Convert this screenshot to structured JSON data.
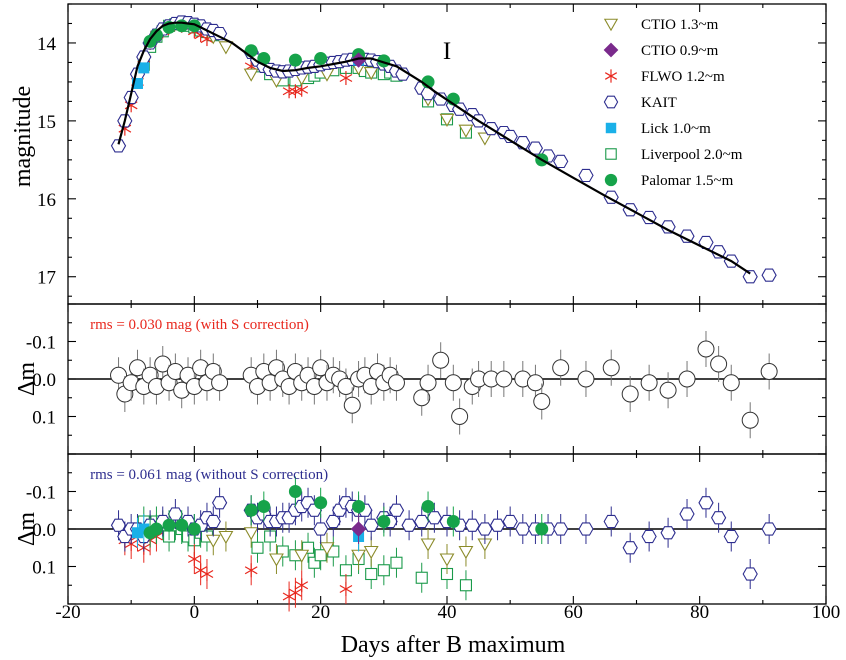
{
  "colors": {
    "kait": "#2e2e8f",
    "ctio13": "#8b8b2a",
    "ctio09": "#7a2a8c",
    "flwo": "#e8281e",
    "lick": "#1ab0e8",
    "liverpool": "#1a9a4a",
    "palomar": "#16a34a",
    "rms_with": "#e8281e",
    "rms_without": "#2e2e8f",
    "residual_with": "#555555"
  },
  "chart_data": [
    {
      "type": "scatter",
      "panel": "light-curve",
      "band_label": "I",
      "ylabel": "magnitude",
      "xlabel": "Days after B maximum",
      "xlim": [
        -20,
        100
      ],
      "ylim_inverted": [
        13.5,
        17.35
      ],
      "yticks": [
        "14",
        "15",
        "16",
        "17"
      ],
      "xticks": [
        "-20",
        "0",
        "20",
        "40",
        "60",
        "80",
        "100"
      ],
      "legend_position": "top-right",
      "legend": [
        {
          "key": "ctio13",
          "label": "CTIO 1.3~m",
          "marker": "triangle-down-open"
        },
        {
          "key": "ctio09",
          "label": "CTIO 0.9~m",
          "marker": "diamond-filled"
        },
        {
          "key": "flwo",
          "label": "FLWO 1.2~m",
          "marker": "asterisk"
        },
        {
          "key": "kait",
          "label": "KAIT",
          "marker": "hexagon-open"
        },
        {
          "key": "lick",
          "label": "Lick 1.0~m",
          "marker": "square-filled"
        },
        {
          "key": "liverpool",
          "label": "Liverpool 2.0~m",
          "marker": "square-open"
        },
        {
          "key": "palomar",
          "label": "Palomar 1.5~m",
          "marker": "circle-filled"
        }
      ],
      "model_curve": {
        "x": [
          -12,
          -11,
          -10,
          -9,
          -8,
          -7,
          -6,
          -5,
          -4,
          -3,
          -2,
          -1,
          0,
          1,
          2,
          4,
          6,
          8,
          10,
          12,
          14,
          16,
          18,
          20,
          22,
          24,
          26,
          28,
          30,
          32,
          34,
          36,
          38,
          40,
          45,
          50,
          55,
          60,
          65,
          70,
          75,
          80,
          85,
          88
        ],
        "y": [
          15.3,
          15.0,
          14.65,
          14.3,
          14.1,
          13.95,
          13.85,
          13.78,
          13.75,
          13.74,
          13.74,
          13.75,
          13.76,
          13.8,
          13.84,
          13.92,
          14.0,
          14.12,
          14.24,
          14.32,
          14.36,
          14.35,
          14.32,
          14.3,
          14.27,
          14.24,
          14.2,
          14.2,
          14.25,
          14.3,
          14.4,
          14.5,
          14.62,
          14.73,
          15.0,
          15.25,
          15.5,
          15.73,
          15.96,
          16.18,
          16.4,
          16.6,
          16.8,
          16.96
        ]
      },
      "series": [
        {
          "key": "kait",
          "x": [
            -12,
            -11,
            -10,
            -9,
            -8,
            -7,
            -6,
            -5,
            -4,
            -3,
            -2,
            -1,
            0,
            1,
            2,
            3,
            4,
            9,
            10,
            11,
            12,
            13,
            14,
            15,
            16,
            17,
            18,
            19,
            20,
            21,
            22,
            23,
            24,
            25,
            26,
            27,
            28,
            29,
            30,
            31,
            32,
            33,
            36,
            37,
            39,
            41,
            42,
            44,
            45,
            47,
            49,
            50,
            52,
            54,
            56,
            58,
            62,
            66,
            69,
            72,
            75,
            78,
            81,
            83,
            85,
            88,
            91
          ],
          "y": [
            15.32,
            15.0,
            14.7,
            14.4,
            14.18,
            14.0,
            13.9,
            13.82,
            13.78,
            13.75,
            13.73,
            13.74,
            13.76,
            13.78,
            13.82,
            13.84,
            13.88,
            14.12,
            14.22,
            14.3,
            14.34,
            14.36,
            14.37,
            14.36,
            14.34,
            14.32,
            14.31,
            14.3,
            14.28,
            14.26,
            14.25,
            14.24,
            14.22,
            14.21,
            14.2,
            14.21,
            14.22,
            14.24,
            14.27,
            14.3,
            14.36,
            14.4,
            14.58,
            14.65,
            14.72,
            14.8,
            14.85,
            14.92,
            15.0,
            15.1,
            15.15,
            15.2,
            15.28,
            15.35,
            15.45,
            15.52,
            15.7,
            15.98,
            16.14,
            16.24,
            16.36,
            16.48,
            16.56,
            16.68,
            16.8,
            17.0,
            16.98
          ]
        },
        {
          "key": "ctio13",
          "x": [
            3,
            5,
            9,
            13,
            17,
            21,
            26,
            28,
            37,
            40,
            43,
            46
          ],
          "y": [
            13.92,
            14.05,
            14.4,
            14.48,
            14.45,
            14.4,
            14.32,
            14.38,
            14.72,
            14.98,
            15.12,
            15.22
          ]
        },
        {
          "key": "ctio09",
          "x": [
            26
          ],
          "y": [
            14.22
          ]
        },
        {
          "key": "flwo",
          "x": [
            -11,
            -10,
            -9,
            -8,
            -7,
            -6,
            -5,
            -4,
            -2,
            0,
            1,
            2,
            9,
            15,
            16,
            17,
            24
          ],
          "y": [
            15.1,
            14.8,
            14.5,
            14.2,
            14.0,
            13.9,
            13.85,
            13.8,
            13.78,
            13.85,
            13.9,
            13.95,
            14.3,
            14.62,
            14.62,
            14.6,
            14.45
          ]
        },
        {
          "key": "lick",
          "x": [
            -9,
            -8,
            26
          ],
          "y": [
            14.52,
            14.32,
            14.22
          ]
        },
        {
          "key": "liverpool",
          "x": [
            -8,
            -7,
            -6,
            -5,
            -4,
            -3,
            -2,
            -1,
            0,
            1,
            2,
            3,
            10,
            12,
            14,
            16,
            18,
            19,
            20,
            22,
            24,
            26,
            27,
            28,
            30,
            31,
            32,
            37,
            40,
            43
          ],
          "y": [
            14.28,
            14.05,
            13.92,
            13.85,
            13.78,
            13.76,
            13.76,
            13.78,
            13.8,
            13.84,
            13.86,
            13.9,
            14.3,
            14.4,
            14.48,
            14.48,
            14.45,
            14.42,
            14.38,
            14.35,
            14.32,
            14.32,
            14.36,
            14.38,
            14.4,
            14.38,
            14.42,
            14.75,
            14.98,
            15.15
          ]
        },
        {
          "key": "palomar",
          "x": [
            -7,
            -6,
            -4,
            -2,
            0,
            9,
            11,
            16,
            20,
            26,
            30,
            37,
            41,
            55
          ],
          "y": [
            13.98,
            13.9,
            13.8,
            13.78,
            13.78,
            14.1,
            14.2,
            14.22,
            14.2,
            14.15,
            14.23,
            14.5,
            14.72,
            15.5
          ]
        }
      ]
    },
    {
      "type": "scatter",
      "panel": "residuals-with-S",
      "annotation": "rms = 0.030 mag (with S correction)",
      "ylabel": "Δm",
      "ylim_inverted": [
        -0.2,
        0.2
      ],
      "yticks": [
        "-0.1",
        "0.0",
        "0.1"
      ],
      "series": [
        {
          "key": "residual_with",
          "x": [
            -12,
            -11,
            -10,
            -9,
            -8,
            -7,
            -6,
            -5,
            -4,
            -3,
            -2,
            -1,
            0,
            1,
            2,
            3,
            4,
            9,
            10,
            11,
            12,
            13,
            14,
            15,
            16,
            17,
            18,
            19,
            20,
            21,
            22,
            23,
            24,
            25,
            26,
            27,
            28,
            29,
            30,
            31,
            32,
            36,
            37,
            39,
            41,
            42,
            44,
            45,
            47,
            49,
            52,
            54,
            55,
            58,
            62,
            66,
            69,
            72,
            75,
            78,
            81,
            83,
            85,
            88,
            91
          ],
          "y": [
            -0.01,
            0.04,
            0.01,
            -0.03,
            0.02,
            -0.01,
            0.02,
            -0.04,
            0.01,
            -0.02,
            0.03,
            -0.01,
            0.02,
            -0.03,
            0.01,
            -0.02,
            0.01,
            -0.01,
            0.02,
            -0.02,
            0.01,
            -0.03,
            0.0,
            0.02,
            -0.02,
            0.01,
            -0.01,
            0.02,
            -0.03,
            0.01,
            -0.01,
            0.0,
            0.02,
            0.07,
            0.0,
            -0.01,
            0.02,
            -0.02,
            0.01,
            -0.01,
            0.01,
            0.05,
            0.01,
            -0.05,
            0.01,
            0.1,
            0.02,
            0.0,
            0.0,
            0.0,
            0.0,
            0.01,
            0.06,
            -0.03,
            0.0,
            -0.03,
            0.04,
            0.01,
            0.03,
            0.0,
            -0.08,
            -0.04,
            0.01,
            0.11,
            -0.02
          ]
        }
      ]
    },
    {
      "type": "scatter",
      "panel": "residuals-without-S",
      "annotation": "rms = 0.061 mag  (without S correction)",
      "ylabel": "Δm",
      "xlabel": "Days after B maximum",
      "ylim_inverted": [
        -0.2,
        0.2
      ],
      "yticks": [
        "-0.1",
        "0.0",
        "0.1"
      ],
      "xticks": [
        "-20",
        "0",
        "20",
        "40",
        "60",
        "80",
        "100"
      ],
      "series": [
        {
          "key": "kait",
          "x": [
            -12,
            -11,
            -10,
            -9,
            -8,
            -7,
            -5,
            -3,
            -1,
            0,
            1,
            2,
            3,
            4,
            9,
            10,
            11,
            12,
            13,
            14,
            15,
            16,
            17,
            18,
            19,
            20,
            22,
            23,
            24,
            25,
            26,
            27,
            28,
            30,
            31,
            32,
            34,
            36,
            38,
            40,
            42,
            44,
            46,
            48,
            50,
            52,
            54,
            56,
            58,
            62,
            66,
            69,
            72,
            75,
            78,
            81,
            83,
            85,
            88,
            91
          ],
          "y": [
            -0.01,
            0.02,
            0.0,
            0.0,
            0.02,
            -0.01,
            -0.02,
            -0.04,
            -0.02,
            0.0,
            -0.01,
            -0.03,
            -0.02,
            -0.07,
            -0.05,
            -0.03,
            -0.04,
            -0.02,
            -0.02,
            -0.03,
            -0.03,
            -0.05,
            -0.06,
            -0.07,
            -0.05,
            0.0,
            -0.02,
            -0.05,
            -0.07,
            -0.06,
            -0.05,
            -0.05,
            -0.01,
            -0.03,
            -0.02,
            -0.05,
            -0.01,
            -0.02,
            -0.03,
            -0.02,
            -0.01,
            -0.01,
            0.0,
            -0.01,
            -0.02,
            0.0,
            0.0,
            0.0,
            0.0,
            0.0,
            -0.02,
            0.05,
            0.02,
            0.01,
            -0.04,
            -0.07,
            -0.03,
            0.02,
            0.12,
            0.0
          ]
        },
        {
          "key": "ctio13",
          "x": [
            3,
            5,
            9,
            13,
            17,
            21,
            26,
            28,
            37,
            40,
            43,
            46
          ],
          "y": [
            0.03,
            0.02,
            0.01,
            0.08,
            0.07,
            0.05,
            0.07,
            0.06,
            0.04,
            0.08,
            0.06,
            0.04
          ]
        },
        {
          "key": "ctio09",
          "x": [
            26
          ],
          "y": [
            0.0
          ]
        },
        {
          "key": "flwo",
          "x": [
            -11,
            -10,
            -9,
            -8,
            -7,
            -6,
            0,
            1,
            2,
            9,
            15,
            16,
            17,
            24
          ],
          "y": [
            0.03,
            0.04,
            0.02,
            0.05,
            0.03,
            0.02,
            0.08,
            0.11,
            0.12,
            0.11,
            0.18,
            0.17,
            0.15,
            0.16
          ]
        },
        {
          "key": "lick",
          "x": [
            -9,
            -8,
            26
          ],
          "y": [
            0.01,
            0.0,
            0.02
          ]
        },
        {
          "key": "liverpool",
          "x": [
            -8,
            -7,
            -6,
            -5,
            -4,
            -3,
            -2,
            -1,
            0,
            1,
            2,
            10,
            12,
            14,
            16,
            18,
            19,
            20,
            22,
            24,
            26,
            28,
            30,
            32,
            36,
            40,
            43
          ],
          "y": [
            -0.02,
            0.0,
            -0.02,
            -0.01,
            0.02,
            -0.01,
            0.0,
            0.02,
            0.03,
            0.01,
            0.02,
            0.05,
            0.02,
            0.06,
            0.07,
            0.05,
            0.09,
            0.07,
            0.06,
            0.11,
            0.08,
            0.12,
            0.11,
            0.09,
            0.13,
            0.12,
            0.15
          ]
        },
        {
          "key": "palomar",
          "x": [
            -7,
            -6,
            -4,
            -2,
            0,
            9,
            11,
            16,
            20,
            26,
            30,
            37,
            41,
            55
          ],
          "y": [
            0.01,
            0.0,
            -0.01,
            -0.01,
            0.0,
            -0.05,
            -0.06,
            -0.1,
            -0.07,
            -0.06,
            -0.02,
            -0.06,
            -0.02,
            0.0
          ]
        }
      ]
    }
  ]
}
